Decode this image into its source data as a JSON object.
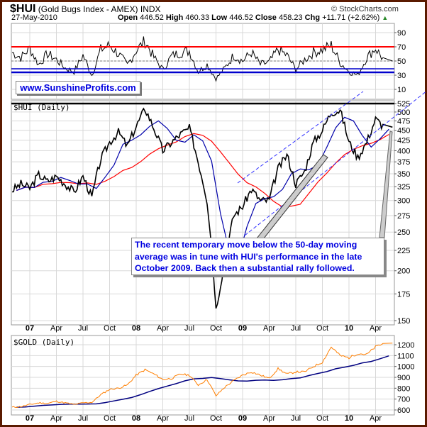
{
  "header": {
    "symbol": "$HUI",
    "name": "(Gold Bugs Index - AMEX)",
    "exchange": "INDX",
    "copyright": "© StockCharts.com",
    "date": "27-May-2010",
    "open_label": "Open",
    "open": "446.52",
    "high_label": "High",
    "high": "460.33",
    "low_label": "Low",
    "low": "446.52",
    "close_label": "Close",
    "close": "458.23",
    "chg_label": "Chg",
    "chg": "+11.71 (+2.62%)",
    "up_icon": "triangle-up-icon"
  },
  "watermark": "www.SunshineProfits.com",
  "annotation": "The recent temporary move below the 50-day moving average was in tune with HUI's performance in the late October 2009. Back then a substantial rally followed.",
  "x_axis_labels": [
    "07",
    "Apr",
    "Jul",
    "Oct",
    "08",
    "Apr",
    "Jul",
    "Oct",
    "09",
    "Apr",
    "Jul",
    "Oct",
    "10",
    "Apr"
  ],
  "colors": {
    "resistance": "#ff0000",
    "support": "#0000cc",
    "hui": "#000000",
    "hui_ma50": "#0000aa",
    "hui_ma200": "#ff0000",
    "gold": "#ff7f00",
    "gold_ma": "#000080",
    "trend": "#3333ff",
    "frame": "#5a1a00"
  },
  "chart_data": [
    {
      "type": "line",
      "panel": "RSI",
      "y_ticks": [
        "90",
        "70",
        "50",
        "30",
        "10"
      ],
      "ylim": [
        0,
        100
      ],
      "overbought": 70,
      "oversold": 30,
      "months": [
        "2006-11",
        "2006-12",
        "2007-01",
        "2007-02",
        "2007-03",
        "2007-04",
        "2007-05",
        "2007-06",
        "2007-07",
        "2007-08",
        "2007-09",
        "2007-10",
        "2007-11",
        "2007-12",
        "2008-01",
        "2008-02",
        "2008-03",
        "2008-04",
        "2008-05",
        "2008-06",
        "2008-07",
        "2008-08",
        "2008-09",
        "2008-10",
        "2008-11",
        "2008-12",
        "2009-01",
        "2009-02",
        "2009-03",
        "2009-04",
        "2009-05",
        "2009-06",
        "2009-07",
        "2009-08",
        "2009-09",
        "2009-10",
        "2009-11",
        "2009-12",
        "2010-01",
        "2010-02",
        "2010-03",
        "2010-04",
        "2010-05"
      ],
      "values": [
        62,
        55,
        68,
        45,
        60,
        52,
        40,
        35,
        58,
        30,
        66,
        72,
        60,
        44,
        65,
        78,
        55,
        38,
        57,
        62,
        64,
        35,
        45,
        25,
        40,
        58,
        50,
        62,
        45,
        48,
        66,
        58,
        38,
        52,
        62,
        66,
        72,
        48,
        35,
        30,
        55,
        68,
        50
      ]
    },
    {
      "type": "line",
      "panel": "$HUI (Daily)",
      "title": "$HUI (Daily)",
      "scale": "log",
      "y_ticks": [
        "525",
        "500",
        "475",
        "450",
        "425",
        "400",
        "375",
        "350",
        "325",
        "300",
        "275",
        "250",
        "225",
        "200",
        "175",
        "150"
      ],
      "ylim": [
        150,
        525
      ],
      "resistance": 525,
      "months": [
        "2006-11",
        "2006-12",
        "2007-01",
        "2007-02",
        "2007-03",
        "2007-04",
        "2007-05",
        "2007-06",
        "2007-07",
        "2007-08",
        "2007-09",
        "2007-10",
        "2007-11",
        "2007-12",
        "2008-01",
        "2008-02",
        "2008-03",
        "2008-04",
        "2008-05",
        "2008-06",
        "2008-07",
        "2008-08",
        "2008-09",
        "2008-10",
        "2008-11",
        "2008-12",
        "2009-01",
        "2009-02",
        "2009-03",
        "2009-04",
        "2009-05",
        "2009-06",
        "2009-07",
        "2009-08",
        "2009-09",
        "2009-10",
        "2009-11",
        "2009-12",
        "2010-01",
        "2010-02",
        "2010-03",
        "2010-04",
        "2010-05"
      ],
      "values": [
        318,
        330,
        322,
        348,
        335,
        345,
        330,
        315,
        345,
        305,
        380,
        420,
        445,
        410,
        460,
        510,
        455,
        400,
        420,
        440,
        455,
        375,
        300,
        160,
        210,
        275,
        290,
        320,
        300,
        300,
        360,
        390,
        330,
        355,
        420,
        450,
        500,
        505,
        420,
        385,
        420,
        480,
        458
      ]
    },
    {
      "type": "line",
      "panel": "$GOLD (Daily)",
      "title": "$GOLD (Daily)",
      "y_ticks": [
        "1200",
        "1100",
        "1000",
        "900",
        "800",
        "700",
        "600"
      ],
      "ylim": [
        580,
        1240
      ],
      "months": [
        "2006-11",
        "2006-12",
        "2007-01",
        "2007-02",
        "2007-03",
        "2007-04",
        "2007-05",
        "2007-06",
        "2007-07",
        "2007-08",
        "2007-09",
        "2007-10",
        "2007-11",
        "2007-12",
        "2008-01",
        "2008-02",
        "2008-03",
        "2008-04",
        "2008-05",
        "2008-06",
        "2008-07",
        "2008-08",
        "2008-09",
        "2008-10",
        "2008-11",
        "2008-12",
        "2009-01",
        "2009-02",
        "2009-03",
        "2009-04",
        "2009-05",
        "2009-06",
        "2009-07",
        "2009-08",
        "2009-09",
        "2009-10",
        "2009-11",
        "2009-12",
        "2010-01",
        "2010-02",
        "2010-03",
        "2010-04",
        "2010-05"
      ],
      "values": [
        625,
        630,
        650,
        665,
        660,
        680,
        665,
        650,
        665,
        670,
        740,
        790,
        800,
        830,
        920,
        970,
        930,
        880,
        890,
        930,
        920,
        830,
        880,
        730,
        810,
        870,
        920,
        950,
        920,
        890,
        980,
        930,
        950,
        950,
        1000,
        1040,
        1180,
        1100,
        1080,
        1120,
        1110,
        1180,
        1215
      ]
    }
  ]
}
